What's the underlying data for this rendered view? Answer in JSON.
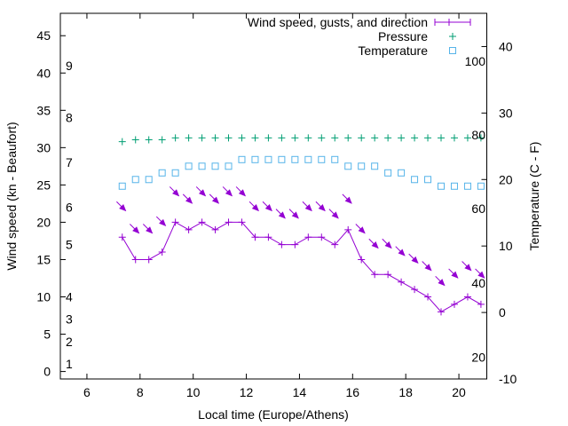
{
  "chart_data": {
    "type": "line",
    "title": "",
    "xlabel": "Local time (Europe/Athens)",
    "ylabel": "Wind speed (kn - Beaufort)",
    "y2label": "Temperature (C - F)",
    "xlim": [
      5,
      21.05
    ],
    "ylim": [
      -1,
      48
    ],
    "y2lim": [
      -10,
      45
    ],
    "grid": false,
    "legend_position": "top-right",
    "xticks": [
      6,
      8,
      10,
      12,
      14,
      16,
      18,
      20
    ],
    "yticks": [
      0,
      5,
      10,
      15,
      20,
      25,
      30,
      35,
      40,
      45
    ],
    "y2ticks": [
      -10,
      0,
      10,
      20,
      30,
      40
    ],
    "beaufort_labels": [
      {
        "label": "1",
        "kn": 1
      },
      {
        "label": "2",
        "kn": 4
      },
      {
        "label": "3",
        "kn": 7
      },
      {
        "label": "4",
        "kn": 10
      },
      {
        "label": "5",
        "kn": 17
      },
      {
        "label": "6",
        "kn": 22
      },
      {
        "label": "7",
        "kn": 28
      },
      {
        "label": "8",
        "kn": 34
      },
      {
        "label": "9",
        "kn": 41
      }
    ],
    "fahrenheit_labels": [
      {
        "label": "20",
        "c": -6.7
      },
      {
        "label": "40",
        "c": 4.4
      },
      {
        "label": "60",
        "c": 15.6
      },
      {
        "label": "80",
        "c": 26.7
      },
      {
        "label": "100",
        "c": 37.8
      }
    ],
    "x": [
      7.33,
      7.83,
      8.33,
      8.83,
      9.33,
      9.83,
      10.33,
      10.83,
      11.33,
      11.83,
      12.33,
      12.83,
      13.33,
      13.83,
      14.33,
      14.83,
      15.33,
      15.83,
      16.33,
      16.83,
      17.33,
      17.83,
      18.33,
      18.83,
      19.33,
      19.83,
      20.33,
      20.83
    ],
    "series": [
      {
        "name": "Wind speed, gusts, and direction",
        "color": "#9400d3",
        "axis": "y",
        "values": [
          18,
          15,
          15,
          16,
          20,
          19,
          20,
          19,
          20,
          20,
          18,
          18,
          17,
          17,
          18,
          18,
          17,
          19,
          15,
          13,
          13,
          12,
          11,
          10,
          8,
          9,
          10,
          9
        ],
        "gusts": [
          22,
          19,
          19,
          20,
          24,
          23,
          24,
          23,
          24,
          24,
          22,
          22,
          21,
          21,
          22,
          22,
          21,
          23,
          19,
          17,
          17,
          16,
          15,
          14,
          12,
          13,
          14,
          13
        ],
        "direction_deg": [
          315,
          315,
          315,
          315,
          315,
          315,
          315,
          315,
          315,
          315,
          315,
          315,
          315,
          315,
          315,
          315,
          315,
          315,
          315,
          315,
          315,
          315,
          315,
          315,
          315,
          315,
          315,
          315
        ]
      },
      {
        "name": "Pressure",
        "color": "#009e73",
        "axis": "y",
        "values": [
          30.8,
          31.05,
          31.05,
          31.05,
          31.3,
          31.3,
          31.3,
          31.3,
          31.3,
          31.3,
          31.3,
          31.3,
          31.3,
          31.3,
          31.3,
          31.3,
          31.3,
          31.3,
          31.3,
          31.3,
          31.3,
          31.3,
          31.3,
          31.3,
          31.3,
          31.3,
          31.3,
          31.3
        ]
      },
      {
        "name": "Temperature",
        "color": "#56b4e9",
        "axis": "y2",
        "values": [
          19,
          20,
          20,
          21,
          21,
          22,
          22,
          22,
          22,
          23,
          23,
          23,
          23,
          23,
          23,
          23,
          23,
          22,
          22,
          22,
          21,
          21,
          20,
          20,
          19,
          19,
          19,
          19
        ]
      }
    ]
  }
}
